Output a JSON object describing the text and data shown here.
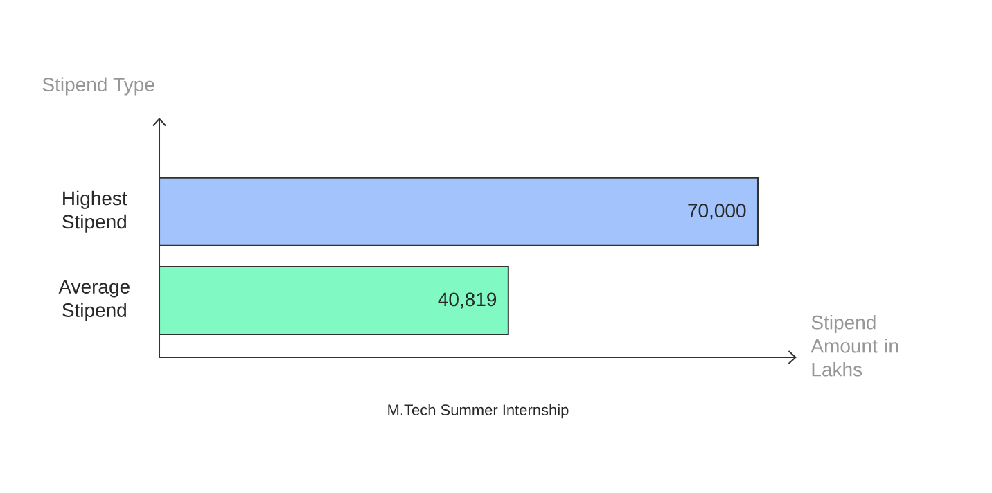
{
  "chart_data": {
    "type": "bar",
    "orientation": "horizontal",
    "title": "M.Tech Summer Internship",
    "xlabel": "Stipend Amount in Lakhs",
    "ylabel": "Stipend Type",
    "categories": [
      "Highest Stipend",
      "Average Stipend"
    ],
    "values": [
      70000,
      40819
    ],
    "colors": [
      "#a2c3fb",
      "#80f9c2"
    ],
    "value_labels": [
      "70,000",
      "40,819"
    ]
  }
}
